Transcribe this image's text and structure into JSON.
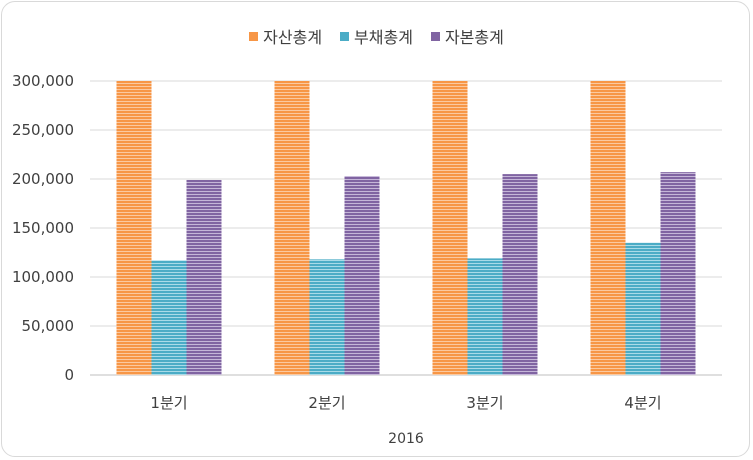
{
  "chart_data": {
    "type": "bar",
    "categories": [
      "1분기",
      "2분기",
      "3분기",
      "4분기"
    ],
    "xlabel": "2016",
    "ylabel": "",
    "ylim": [
      0,
      300000
    ],
    "yticks": [
      "0",
      "50,000",
      "100,000",
      "150,000",
      "200,000",
      "250,000",
      "300,000"
    ],
    "yticks_values": [
      0,
      50000,
      100000,
      150000,
      200000,
      250000,
      300000
    ],
    "grid": true,
    "legend_position": "top",
    "series": [
      {
        "name": "자산총계",
        "color": "#f79646",
        "values": [
          300000,
          300000,
          300000,
          300000
        ]
      },
      {
        "name": "부채총계",
        "color": "#4bacc6",
        "values": [
          117000,
          118000,
          119000,
          135000
        ]
      },
      {
        "name": "자본총계",
        "color": "#8064a2",
        "values": [
          199000,
          203000,
          205000,
          207000
        ]
      }
    ]
  }
}
